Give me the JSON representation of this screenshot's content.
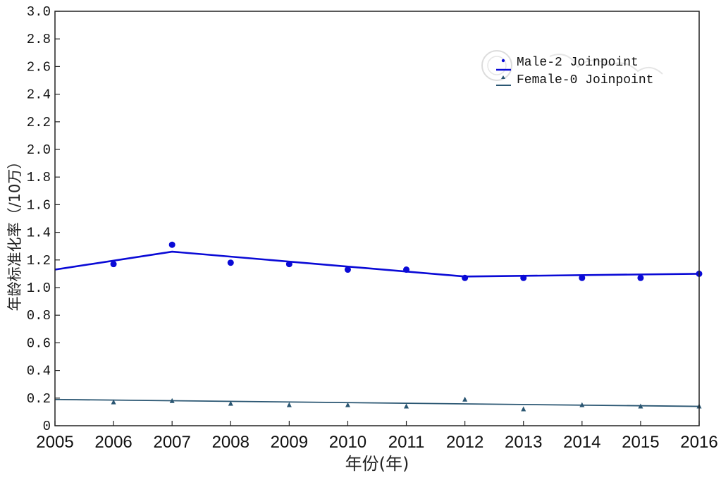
{
  "chart_data": {
    "type": "line",
    "title": "",
    "xlabel": "年份(年)",
    "ylabel": "年龄标准化率（/10万）",
    "xlim": [
      2005,
      2016
    ],
    "ylim": [
      0,
      3.0
    ],
    "x_ticks": [
      "2005",
      "2006",
      "2007",
      "2008",
      "2009",
      "2010",
      "2011",
      "2012",
      "2013",
      "2014",
      "2015",
      "2016"
    ],
    "y_ticks": [
      "0",
      "0.2",
      "0.4",
      "0.6",
      "0.8",
      "1.0",
      "1.2",
      "1.4",
      "1.6",
      "1.8",
      "2.0",
      "2.2",
      "2.4",
      "2.6",
      "2.8",
      "3.0"
    ],
    "legend_position": "top-right",
    "series": [
      {
        "name": "Male-2 Joinpoint",
        "color": "#0a0ad6",
        "marker": "circle",
        "x": [
          2006,
          2007,
          2008,
          2009,
          2010,
          2011,
          2012,
          2013,
          2014,
          2015,
          2016
        ],
        "observed": [
          1.17,
          1.31,
          1.18,
          1.17,
          1.13,
          1.13,
          1.07,
          1.07,
          1.07,
          1.07,
          1.1
        ],
        "fit_x": [
          2005,
          2007,
          2012,
          2016
        ],
        "fit_y": [
          1.13,
          1.26,
          1.08,
          1.1
        ]
      },
      {
        "name": "Female-0 Joinpoint",
        "color": "#2a5672",
        "marker": "triangle",
        "x": [
          2006,
          2007,
          2008,
          2009,
          2010,
          2011,
          2012,
          2013,
          2014,
          2015,
          2016
        ],
        "observed": [
          0.17,
          0.18,
          0.16,
          0.15,
          0.15,
          0.14,
          0.19,
          0.12,
          0.15,
          0.14,
          0.14
        ],
        "fit_x": [
          2005,
          2016
        ],
        "fit_y": [
          0.19,
          0.14
        ]
      }
    ]
  }
}
